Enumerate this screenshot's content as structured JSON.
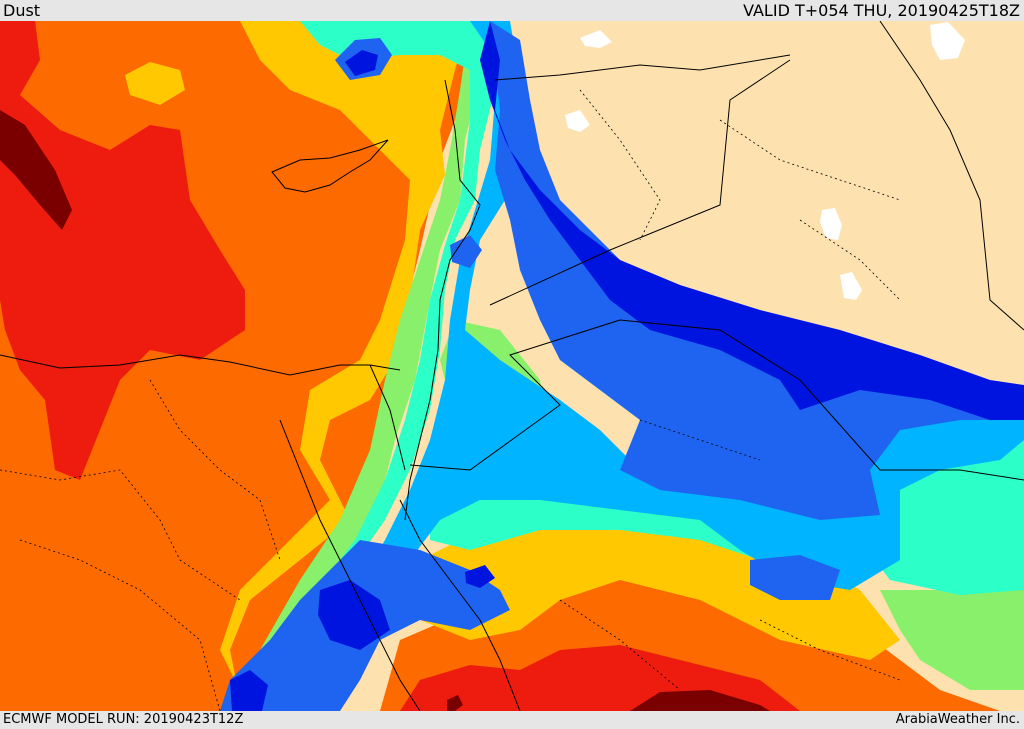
{
  "header": {
    "product": "Dust",
    "valid_time": "VALID T+054 THU, 20190425T18Z"
  },
  "footer": {
    "model_run": "ECMWF MODEL RUN: 20190423T12Z",
    "credit": "ArabiaWeather Inc."
  },
  "colors": {
    "land": "#fde2b0",
    "dark_red": "#7a0000",
    "red": "#ee1c0e",
    "orange": "#fd6a00",
    "yellow": "#ffc800",
    "light_green": "#88f06a",
    "cyan_green": "#2cffc8",
    "light_blue": "#00b4ff",
    "blue": "#1e64f0",
    "deep_blue": "#0014e0",
    "border": "#000000",
    "water_body": "#ffffff"
  }
}
